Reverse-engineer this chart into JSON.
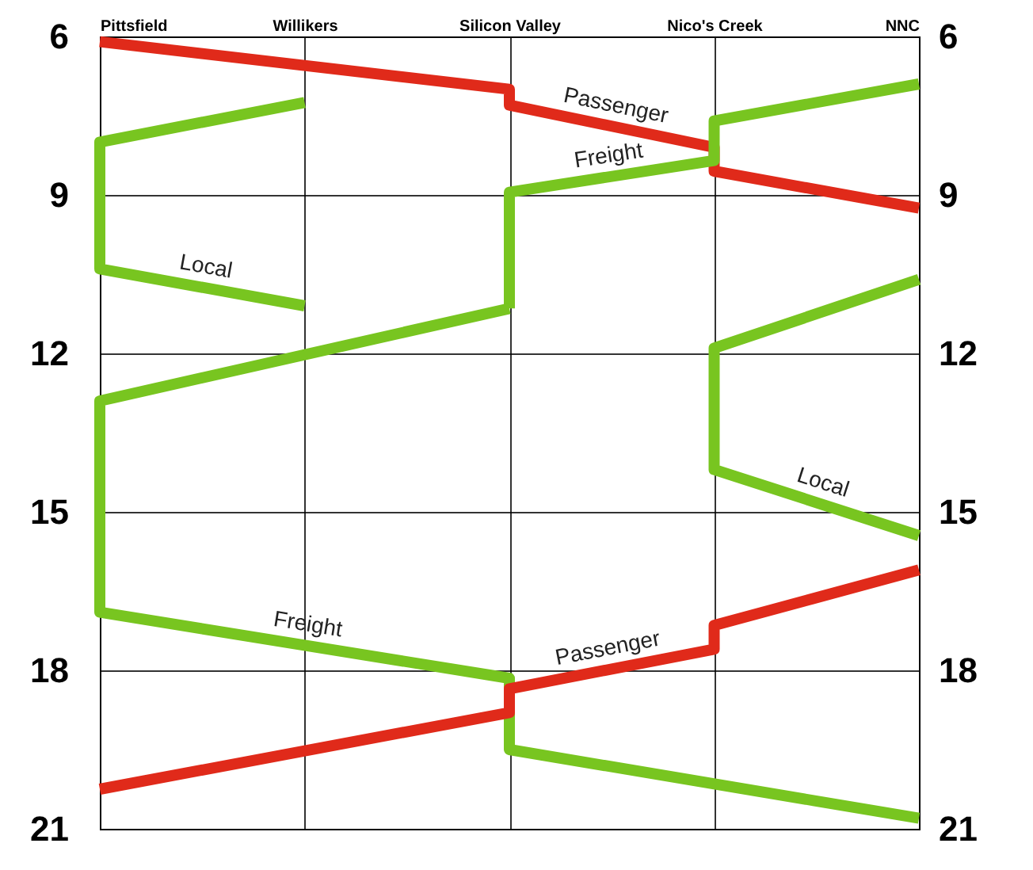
{
  "chart_data": {
    "type": "line",
    "categories": [
      "Pittsfield",
      "Willikers",
      "Silicon Valley",
      "Nico's Creek",
      "NNC"
    ],
    "ylim": [
      21,
      6
    ],
    "yticks": [
      6,
      9,
      12,
      15,
      18,
      21
    ],
    "y2lim": [
      21,
      6
    ],
    "y2ticks": [
      6,
      9,
      12,
      15,
      18,
      21
    ],
    "grid": true,
    "line_style": "solid",
    "series": [
      {
        "name": "Passenger",
        "color": "#e02a1a",
        "x": [
          "Pittsfield",
          "Silicon Valley",
          "Silicon Valley",
          "Nico's Creek",
          "Nico's Creek",
          "NNC"
        ],
        "values": [
          6.1,
          7.0,
          7.3,
          8.1,
          8.55,
          9.25
        ]
      },
      {
        "name": "Local",
        "color": "#78c520",
        "x": [
          "Willikers",
          "Pittsfield",
          "Pittsfield",
          "Willikers"
        ],
        "values": [
          7.25,
          8.0,
          10.4,
          11.1
        ]
      },
      {
        "name": "Freight",
        "color": "#78c520",
        "x": [
          "NNC",
          "Nico's Creek",
          "Nico's Creek",
          "Silicon Valley",
          "Silicon Valley"
        ],
        "values": [
          6.9,
          7.6,
          8.35,
          8.95,
          11.15
        ]
      },
      {
        "name": "Local",
        "color": "#78c520",
        "x": [
          "NNC",
          "Nico's Creek",
          "Nico's Creek",
          "NNC"
        ],
        "values": [
          10.6,
          11.9,
          14.2,
          15.45
        ]
      },
      {
        "name": "Freight",
        "color": "#78c520",
        "x": [
          "Silicon Valley",
          "Pittsfield",
          "Pittsfield",
          "Silicon Valley",
          "Silicon Valley",
          "NNC"
        ],
        "values": [
          11.15,
          12.9,
          16.9,
          18.15,
          19.5,
          20.8
        ]
      },
      {
        "name": "Passenger",
        "color": "#e02a1a",
        "x": [
          "Pittsfield",
          "Silicon Valley",
          "Silicon Valley",
          "Nico's Creek",
          "Nico's Creek",
          "NNC"
        ],
        "values": [
          20.25,
          18.8,
          18.35,
          17.6,
          17.15,
          16.1
        ]
      }
    ]
  }
}
